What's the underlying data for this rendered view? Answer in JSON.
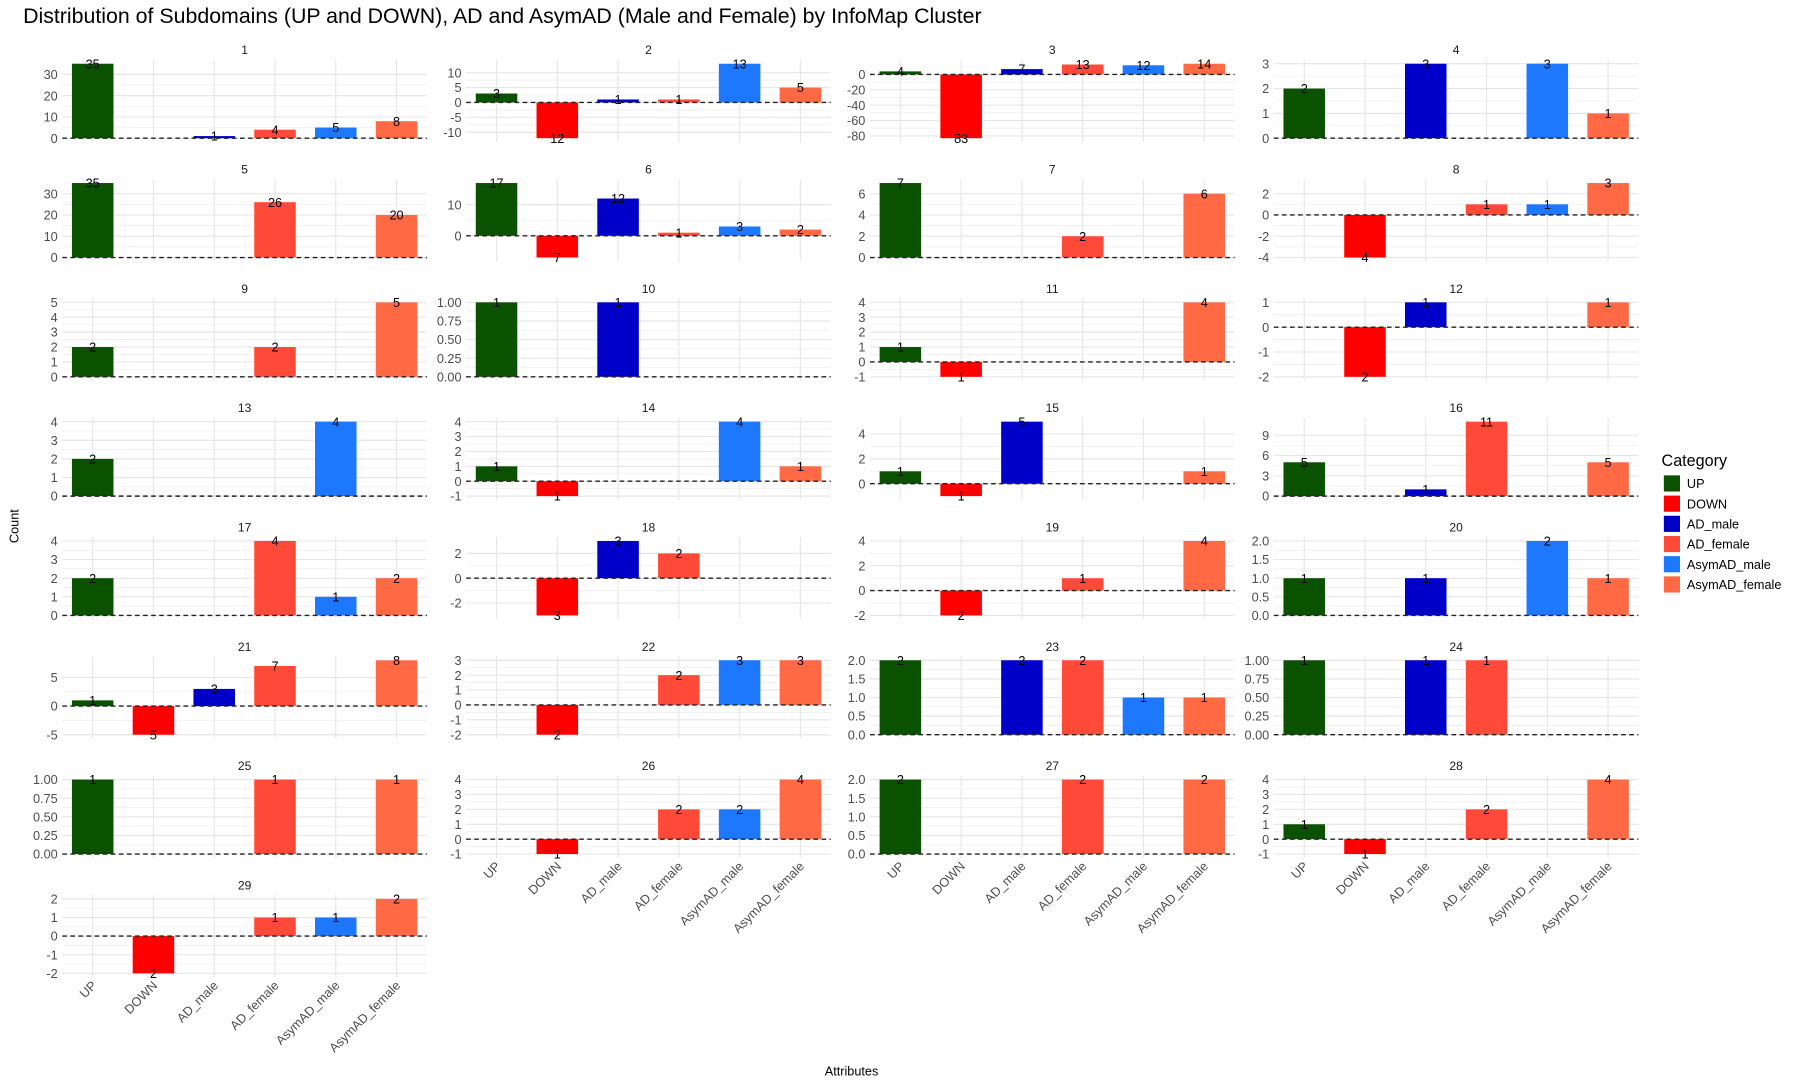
{
  "chart_data": {
    "type": "bar",
    "title": "Distribution of Subdomains (UP and DOWN), AD and AsymAD (Male and Female) by InfoMap Cluster",
    "xlabel": "Attributes",
    "ylabel": "Count",
    "categories": [
      "UP",
      "DOWN",
      "AD_male",
      "AD_female",
      "AsymAD_male",
      "AsymAD_female"
    ],
    "legend": {
      "title": "Category",
      "placement": "right",
      "entries": [
        "UP",
        "DOWN",
        "AD_male",
        "AD_female",
        "AsymAD_male",
        "AsymAD_female"
      ]
    },
    "colors": {
      "UP": "#0B5200",
      "DOWN": "#FF0000",
      "AD_male": "#0000C8",
      "AD_female": "#FF4A3A",
      "AsymAD_male": "#1E78FF",
      "AsymAD_female": "#FF6A45"
    },
    "grid": true,
    "reference_line": {
      "y": 0,
      "style": "dashed"
    },
    "facets": [
      {
        "label": "1",
        "values": [
          35,
          0,
          1,
          4,
          5,
          8
        ],
        "yticks": [
          "0",
          "10",
          "20",
          "30"
        ]
      },
      {
        "label": "2",
        "values": [
          3,
          -12,
          1,
          1,
          13,
          5
        ],
        "yticks": [
          "-10",
          "-5",
          "0",
          "5",
          "10"
        ]
      },
      {
        "label": "3",
        "values": [
          4,
          -83,
          7,
          13,
          12,
          14
        ],
        "yticks": [
          "-80",
          "-60",
          "-40",
          "-20",
          "0"
        ]
      },
      {
        "label": "4",
        "values": [
          2,
          0,
          3,
          0,
          3,
          1
        ],
        "yticks": [
          "0",
          "1",
          "2",
          "3"
        ]
      },
      {
        "label": "5",
        "values": [
          35,
          0,
          0,
          26,
          0,
          20
        ],
        "yticks": [
          "0",
          "10",
          "20",
          "30"
        ]
      },
      {
        "label": "6",
        "values": [
          17,
          -7,
          12,
          1,
          3,
          2
        ],
        "yticks": [
          "0",
          "10"
        ]
      },
      {
        "label": "7",
        "values": [
          7,
          0,
          0,
          2,
          0,
          6
        ],
        "yticks": [
          "0",
          "2",
          "4",
          "6"
        ]
      },
      {
        "label": "8",
        "values": [
          0,
          -4,
          0,
          1,
          1,
          3
        ],
        "yticks": [
          "-4",
          "-2",
          "0",
          "2"
        ]
      },
      {
        "label": "9",
        "values": [
          2,
          0,
          0,
          2,
          0,
          5
        ],
        "yticks": [
          "0",
          "1",
          "2",
          "3",
          "4",
          "5"
        ]
      },
      {
        "label": "10",
        "values": [
          1,
          0,
          1,
          0,
          0,
          0
        ],
        "yticks": [
          "0.00",
          "0.25",
          "0.50",
          "0.75",
          "1.00"
        ]
      },
      {
        "label": "11",
        "values": [
          1,
          -1,
          0,
          0,
          0,
          4
        ],
        "yticks": [
          "-1",
          "0",
          "1",
          "2",
          "3",
          "4"
        ]
      },
      {
        "label": "12",
        "values": [
          0,
          -2,
          1,
          0,
          0,
          1
        ],
        "yticks": [
          "-2",
          "-1",
          "0",
          "1"
        ]
      },
      {
        "label": "13",
        "values": [
          2,
          0,
          0,
          0,
          4,
          0
        ],
        "yticks": [
          "0",
          "1",
          "2",
          "3",
          "4"
        ]
      },
      {
        "label": "14",
        "values": [
          1,
          -1,
          0,
          0,
          4,
          1
        ],
        "yticks": [
          "-1",
          "0",
          "1",
          "2",
          "3",
          "4"
        ]
      },
      {
        "label": "15",
        "values": [
          1,
          -1,
          5,
          0,
          0,
          1
        ],
        "yticks": [
          "0",
          "2",
          "4"
        ]
      },
      {
        "label": "16",
        "values": [
          5,
          0,
          1,
          11,
          0,
          5
        ],
        "yticks": [
          "0",
          "3",
          "6",
          "9"
        ]
      },
      {
        "label": "17",
        "values": [
          2,
          0,
          0,
          4,
          1,
          2
        ],
        "yticks": [
          "0",
          "1",
          "2",
          "3",
          "4"
        ]
      },
      {
        "label": "18",
        "values": [
          0,
          -3,
          3,
          2,
          0,
          0
        ],
        "yticks": [
          "-2",
          "0",
          "2"
        ]
      },
      {
        "label": "19",
        "values": [
          0,
          -2,
          0,
          1,
          0,
          4
        ],
        "yticks": [
          "-2",
          "0",
          "2",
          "4"
        ]
      },
      {
        "label": "20",
        "values": [
          1,
          0,
          1,
          0,
          2,
          1
        ],
        "yticks": [
          "0.0",
          "0.5",
          "1.0",
          "1.5",
          "2.0"
        ]
      },
      {
        "label": "21",
        "values": [
          1,
          -5,
          3,
          7,
          0,
          8
        ],
        "yticks": [
          "-5",
          "0",
          "5"
        ]
      },
      {
        "label": "22",
        "values": [
          0,
          -2,
          0,
          2,
          3,
          3
        ],
        "yticks": [
          "-2",
          "-1",
          "0",
          "1",
          "2",
          "3"
        ]
      },
      {
        "label": "23",
        "values": [
          2,
          0,
          2,
          2,
          1,
          1
        ],
        "yticks": [
          "0.0",
          "0.5",
          "1.0",
          "1.5",
          "2.0"
        ]
      },
      {
        "label": "24",
        "values": [
          1,
          0,
          1,
          1,
          0,
          0
        ],
        "yticks": [
          "0.00",
          "0.25",
          "0.50",
          "0.75",
          "1.00"
        ]
      },
      {
        "label": "25",
        "values": [
          1,
          0,
          0,
          1,
          0,
          1
        ],
        "yticks": [
          "0.00",
          "0.25",
          "0.50",
          "0.75",
          "1.00"
        ]
      },
      {
        "label": "26",
        "values": [
          0,
          -1,
          0,
          2,
          2,
          4
        ],
        "yticks": [
          "-1",
          "0",
          "1",
          "2",
          "3",
          "4"
        ]
      },
      {
        "label": "27",
        "values": [
          2,
          0,
          0,
          2,
          0,
          2
        ],
        "yticks": [
          "0.0",
          "0.5",
          "1.0",
          "1.5",
          "2.0"
        ]
      },
      {
        "label": "28",
        "values": [
          1,
          -1,
          0,
          2,
          0,
          4
        ],
        "yticks": [
          "-1",
          "0",
          "1",
          "2",
          "3",
          "4"
        ]
      },
      {
        "label": "29",
        "values": [
          0,
          -2,
          0,
          1,
          1,
          2
        ],
        "yticks": [
          "-2",
          "-1",
          "0",
          "1",
          "2"
        ]
      }
    ]
  }
}
